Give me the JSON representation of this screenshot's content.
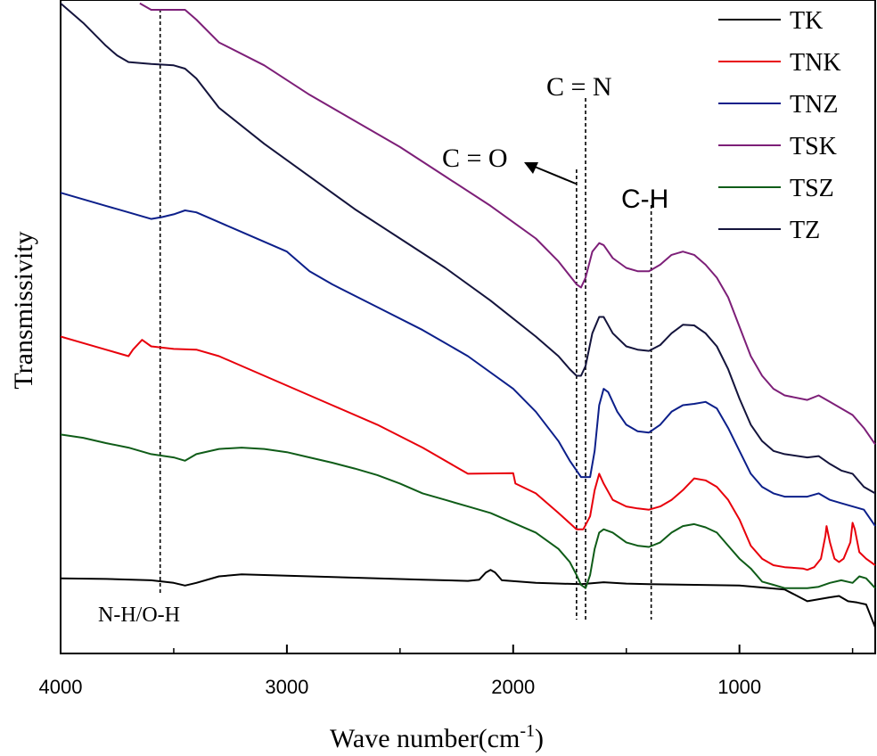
{
  "chart_data": {
    "type": "line",
    "title": "",
    "xlabel": "Wave number(cm",
    "xlabel_sup": "-1",
    "xlabel_end": ")",
    "ylabel": "Transmissivity",
    "xlim": [
      4000,
      400
    ],
    "ylim": [
      0,
      100
    ],
    "x_reversed": true,
    "xticks": [
      4000,
      3000,
      2000,
      1000
    ],
    "yticks": [],
    "grid": false,
    "legend_position": "top-right",
    "series": [
      {
        "name": "TK",
        "color": "#000000",
        "points": [
          [
            4000,
            11.5
          ],
          [
            3800,
            11.4
          ],
          [
            3600,
            11.2
          ],
          [
            3500,
            10.8
          ],
          [
            3450,
            10.4
          ],
          [
            3400,
            10.8
          ],
          [
            3300,
            11.8
          ],
          [
            3200,
            12.1
          ],
          [
            3000,
            11.9
          ],
          [
            2700,
            11.6
          ],
          [
            2400,
            11.3
          ],
          [
            2200,
            11.1
          ],
          [
            2150,
            11.3
          ],
          [
            2120,
            12.4
          ],
          [
            2100,
            12.8
          ],
          [
            2080,
            12.4
          ],
          [
            2050,
            11.2
          ],
          [
            1900,
            10.8
          ],
          [
            1700,
            10.6
          ],
          [
            1600,
            10.9
          ],
          [
            1500,
            10.7
          ],
          [
            1400,
            10.6
          ],
          [
            1200,
            10.5
          ],
          [
            1000,
            10.4
          ],
          [
            800,
            9.8
          ],
          [
            700,
            8.0
          ],
          [
            600,
            8.6
          ],
          [
            560,
            8.8
          ],
          [
            520,
            8.0
          ],
          [
            480,
            7.8
          ],
          [
            440,
            7.5
          ],
          [
            400,
            4.0
          ]
        ]
      },
      {
        "name": "TNK",
        "color": "#e8000b",
        "points": [
          [
            4000,
            48.5
          ],
          [
            3800,
            46.5
          ],
          [
            3700,
            45.5
          ],
          [
            3680,
            46.5
          ],
          [
            3640,
            48.0
          ],
          [
            3600,
            47.0
          ],
          [
            3500,
            46.6
          ],
          [
            3400,
            46.5
          ],
          [
            3300,
            45.5
          ],
          [
            3200,
            44.0
          ],
          [
            3000,
            41.0
          ],
          [
            2800,
            38.0
          ],
          [
            2600,
            35.0
          ],
          [
            2400,
            31.5
          ],
          [
            2250,
            28.5
          ],
          [
            2200,
            27.5
          ],
          [
            2000,
            27.6
          ],
          [
            1990,
            26.0
          ],
          [
            1900,
            24.5
          ],
          [
            1800,
            21.5
          ],
          [
            1720,
            19.0
          ],
          [
            1690,
            19.0
          ],
          [
            1660,
            21.0
          ],
          [
            1640,
            25.0
          ],
          [
            1620,
            27.5
          ],
          [
            1600,
            26.0
          ],
          [
            1560,
            23.5
          ],
          [
            1500,
            22.5
          ],
          [
            1450,
            22.2
          ],
          [
            1400,
            22.0
          ],
          [
            1350,
            22.5
          ],
          [
            1300,
            23.5
          ],
          [
            1250,
            25.0
          ],
          [
            1200,
            26.8
          ],
          [
            1150,
            26.5
          ],
          [
            1100,
            25.5
          ],
          [
            1050,
            23.5
          ],
          [
            1000,
            20.5
          ],
          [
            950,
            16.5
          ],
          [
            900,
            14.5
          ],
          [
            850,
            13.5
          ],
          [
            800,
            13.2
          ],
          [
            720,
            13.0
          ],
          [
            700,
            12.8
          ],
          [
            670,
            13.2
          ],
          [
            640,
            14.5
          ],
          [
            620,
            18.0
          ],
          [
            615,
            19.5
          ],
          [
            600,
            17.0
          ],
          [
            580,
            14.5
          ],
          [
            560,
            14.0
          ],
          [
            540,
            14.5
          ],
          [
            510,
            17.0
          ],
          [
            500,
            20.0
          ],
          [
            490,
            19.0
          ],
          [
            470,
            15.5
          ],
          [
            440,
            14.5
          ],
          [
            400,
            13.5
          ]
        ]
      },
      {
        "name": "TNZ",
        "color": "#0c1f8a",
        "points": [
          [
            4000,
            70.5
          ],
          [
            3900,
            69.5
          ],
          [
            3800,
            68.5
          ],
          [
            3700,
            67.5
          ],
          [
            3600,
            66.5
          ],
          [
            3550,
            66.8
          ],
          [
            3500,
            67.2
          ],
          [
            3450,
            67.8
          ],
          [
            3400,
            67.5
          ],
          [
            3300,
            66.0
          ],
          [
            3200,
            64.5
          ],
          [
            3000,
            61.5
          ],
          [
            2900,
            58.5
          ],
          [
            2800,
            56.5
          ],
          [
            2600,
            53.0
          ],
          [
            2400,
            49.5
          ],
          [
            2200,
            45.5
          ],
          [
            2000,
            40.5
          ],
          [
            1900,
            37.0
          ],
          [
            1800,
            32.5
          ],
          [
            1750,
            29.5
          ],
          [
            1700,
            27.0
          ],
          [
            1660,
            27.0
          ],
          [
            1640,
            31.0
          ],
          [
            1620,
            38.0
          ],
          [
            1600,
            40.5
          ],
          [
            1580,
            40.0
          ],
          [
            1540,
            37.0
          ],
          [
            1500,
            35.0
          ],
          [
            1450,
            34.0
          ],
          [
            1400,
            33.8
          ],
          [
            1350,
            35.0
          ],
          [
            1300,
            37.0
          ],
          [
            1250,
            38.0
          ],
          [
            1200,
            38.2
          ],
          [
            1150,
            38.5
          ],
          [
            1100,
            37.5
          ],
          [
            1050,
            34.5
          ],
          [
            1000,
            31.0
          ],
          [
            950,
            27.5
          ],
          [
            900,
            25.5
          ],
          [
            850,
            24.5
          ],
          [
            800,
            24.0
          ],
          [
            700,
            24.0
          ],
          [
            650,
            24.5
          ],
          [
            600,
            23.5
          ],
          [
            550,
            23.0
          ],
          [
            500,
            22.5
          ],
          [
            450,
            22.0
          ],
          [
            400,
            19.5
          ]
        ]
      },
      {
        "name": "TSK",
        "color": "#7d1f78",
        "points": [
          [
            3650,
            99.5
          ],
          [
            3600,
            98.5
          ],
          [
            3500,
            98.5
          ],
          [
            3450,
            98.5
          ],
          [
            3400,
            97.0
          ],
          [
            3300,
            93.5
          ],
          [
            3100,
            90.0
          ],
          [
            2900,
            85.5
          ],
          [
            2700,
            81.5
          ],
          [
            2500,
            77.5
          ],
          [
            2300,
            73.0
          ],
          [
            2100,
            68.5
          ],
          [
            1900,
            63.5
          ],
          [
            1800,
            60.0
          ],
          [
            1720,
            56.5
          ],
          [
            1700,
            56.0
          ],
          [
            1680,
            57.5
          ],
          [
            1650,
            61.5
          ],
          [
            1620,
            62.8
          ],
          [
            1600,
            62.5
          ],
          [
            1560,
            60.5
          ],
          [
            1500,
            59.0
          ],
          [
            1450,
            58.5
          ],
          [
            1400,
            58.5
          ],
          [
            1350,
            59.5
          ],
          [
            1300,
            61.0
          ],
          [
            1250,
            61.5
          ],
          [
            1200,
            61.0
          ],
          [
            1150,
            59.5
          ],
          [
            1100,
            57.5
          ],
          [
            1050,
            54.5
          ],
          [
            1000,
            50.0
          ],
          [
            950,
            45.5
          ],
          [
            900,
            42.5
          ],
          [
            850,
            40.5
          ],
          [
            800,
            39.5
          ],
          [
            700,
            38.8
          ],
          [
            650,
            39.5
          ],
          [
            600,
            38.5
          ],
          [
            550,
            37.5
          ],
          [
            500,
            36.5
          ],
          [
            450,
            34.5
          ],
          [
            400,
            32.0
          ]
        ]
      },
      {
        "name": "TSZ",
        "color": "#0f5c18",
        "points": [
          [
            4000,
            33.5
          ],
          [
            3900,
            33.0
          ],
          [
            3800,
            32.2
          ],
          [
            3700,
            31.5
          ],
          [
            3600,
            30.5
          ],
          [
            3500,
            30.0
          ],
          [
            3450,
            29.5
          ],
          [
            3400,
            30.5
          ],
          [
            3300,
            31.3
          ],
          [
            3200,
            31.5
          ],
          [
            3100,
            31.3
          ],
          [
            3000,
            30.8
          ],
          [
            2900,
            30.0
          ],
          [
            2800,
            29.2
          ],
          [
            2700,
            28.3
          ],
          [
            2600,
            27.3
          ],
          [
            2500,
            26.0
          ],
          [
            2400,
            24.5
          ],
          [
            2300,
            23.5
          ],
          [
            2200,
            22.5
          ],
          [
            2100,
            21.5
          ],
          [
            2000,
            20.0
          ],
          [
            1900,
            18.5
          ],
          [
            1800,
            16.0
          ],
          [
            1750,
            14.0
          ],
          [
            1720,
            12.0
          ],
          [
            1700,
            10.5
          ],
          [
            1680,
            10.0
          ],
          [
            1660,
            12.0
          ],
          [
            1640,
            16.0
          ],
          [
            1620,
            18.5
          ],
          [
            1600,
            19.0
          ],
          [
            1560,
            18.5
          ],
          [
            1500,
            17.0
          ],
          [
            1450,
            16.5
          ],
          [
            1400,
            16.3
          ],
          [
            1350,
            17.0
          ],
          [
            1300,
            18.5
          ],
          [
            1250,
            19.5
          ],
          [
            1200,
            19.8
          ],
          [
            1150,
            19.3
          ],
          [
            1100,
            18.5
          ],
          [
            1050,
            16.5
          ],
          [
            1000,
            14.5
          ],
          [
            950,
            13.0
          ],
          [
            900,
            11.0
          ],
          [
            850,
            10.5
          ],
          [
            800,
            10.0
          ],
          [
            700,
            10.0
          ],
          [
            650,
            10.2
          ],
          [
            600,
            10.8
          ],
          [
            550,
            11.2
          ],
          [
            500,
            10.8
          ],
          [
            470,
            11.8
          ],
          [
            440,
            11.5
          ],
          [
            400,
            10.0
          ]
        ]
      },
      {
        "name": "TZ",
        "color": "#14143c",
        "points": [
          [
            4000,
            99.5
          ],
          [
            3900,
            96.5
          ],
          [
            3800,
            93.0
          ],
          [
            3750,
            91.5
          ],
          [
            3700,
            90.5
          ],
          [
            3600,
            90.2
          ],
          [
            3500,
            90.0
          ],
          [
            3450,
            89.5
          ],
          [
            3400,
            88.0
          ],
          [
            3300,
            83.5
          ],
          [
            3100,
            78.0
          ],
          [
            2900,
            73.0
          ],
          [
            2700,
            68.0
          ],
          [
            2500,
            63.5
          ],
          [
            2300,
            59.0
          ],
          [
            2100,
            54.0
          ],
          [
            1900,
            48.5
          ],
          [
            1800,
            45.5
          ],
          [
            1750,
            43.5
          ],
          [
            1720,
            42.5
          ],
          [
            1700,
            42.5
          ],
          [
            1680,
            44.0
          ],
          [
            1650,
            49.0
          ],
          [
            1620,
            51.5
          ],
          [
            1600,
            51.5
          ],
          [
            1560,
            49.0
          ],
          [
            1500,
            47.0
          ],
          [
            1450,
            46.5
          ],
          [
            1400,
            46.3
          ],
          [
            1350,
            47.2
          ],
          [
            1300,
            49.0
          ],
          [
            1250,
            50.3
          ],
          [
            1200,
            50.2
          ],
          [
            1150,
            49.0
          ],
          [
            1100,
            47.0
          ],
          [
            1050,
            43.5
          ],
          [
            1000,
            39.0
          ],
          [
            950,
            35.0
          ],
          [
            900,
            32.5
          ],
          [
            850,
            31.0
          ],
          [
            800,
            30.5
          ],
          [
            700,
            30.0
          ],
          [
            650,
            30.2
          ],
          [
            600,
            29.0
          ],
          [
            550,
            28.0
          ],
          [
            500,
            27.5
          ],
          [
            450,
            25.5
          ],
          [
            400,
            24.5
          ]
        ]
      }
    ],
    "reference_lines": [
      {
        "x": 3560,
        "label": "N-H/O-H"
      },
      {
        "x": 1720,
        "label": "C = O"
      },
      {
        "x": 1680,
        "label": "C = N"
      },
      {
        "x": 1390,
        "label": "C-H"
      }
    ]
  }
}
